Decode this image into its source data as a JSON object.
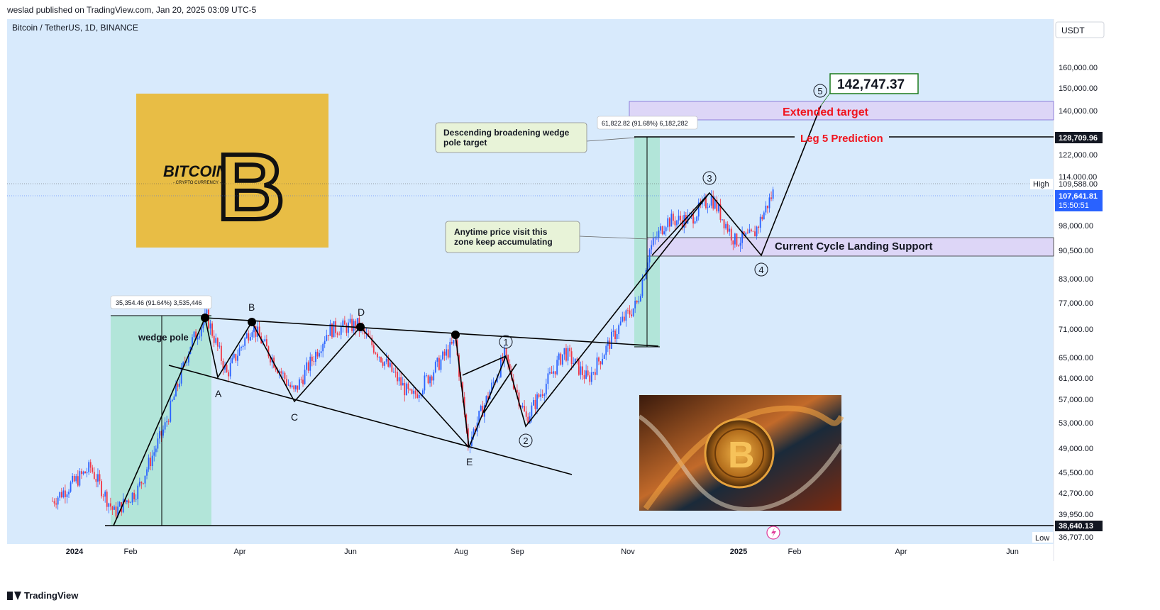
{
  "header": {
    "published": "weslad published on TradingView.com, Jan 20, 2025 03:09 UTC-5"
  },
  "symbol": {
    "title": "Bitcoin / TetherUS, 1D, BINANCE"
  },
  "currency_button": "USDT",
  "footer": {
    "brand": "TradingView"
  },
  "logo_text": {
    "main": "BITCOIN",
    "sub": "- CRYPTO CURRENCY -",
    "symbol": "B"
  },
  "colors": {
    "background": "#d8eafc",
    "candle_up": "#2962ff",
    "candle_down": "#f23645",
    "teal_zone": "#b2e5d9",
    "lavender_zone": "#ddd6f7",
    "annotation_red": "#f0141e",
    "target_green": "#1b7a1b",
    "axis_label_dark": "#131722",
    "axis_label_blue": "#2962ff"
  },
  "price_axis": {
    "ticks": [
      "160,000.00",
      "150,000.00",
      "140,000.00",
      "128,709.96",
      "122,000.00",
      "114,000.00",
      "109,588.00",
      "107,641.81",
      "15:50:51",
      "98,000.00",
      "90,500.00",
      "83,000.00",
      "77,000.00",
      "71,000.00",
      "65,000.00",
      "61,000.00",
      "57,000.00",
      "53,000.00",
      "49,000.00",
      "45,500.00",
      "42,700.00",
      "39,950.00",
      "38,640.13",
      "36,707.00"
    ],
    "high_label": "High",
    "low_label": "Low"
  },
  "time_axis": {
    "ticks": [
      "2024",
      "Feb",
      "Apr",
      "Jun",
      "Aug",
      "Sep",
      "Nov",
      "2025",
      "Feb",
      "Apr",
      "Jun"
    ]
  },
  "annotations": {
    "pole_measure_1": "35,354.46 (91.64%) 3,535,446",
    "pole_measure_2": "61,822.82 (91.68%) 6,182,282",
    "wedge_pole": "wedge pole",
    "callout_wedge": [
      "Descending broadening wedge",
      "pole target"
    ],
    "callout_zone": [
      "Anytime price visit this",
      "zone keep accumulating"
    ],
    "extended_target": "Extended target",
    "leg5_prediction": "Leg 5 Prediction",
    "support_label": "Current Cycle Landing Support",
    "target_value": "142,747.37",
    "points": {
      "A": "A",
      "B": "B",
      "C": "C",
      "D": "D",
      "E": "E"
    },
    "waves": {
      "w1": "1",
      "w2": "2",
      "w3": "3",
      "w4": "4",
      "w5": "5"
    }
  },
  "chart_data": {
    "type": "line",
    "title": "Bitcoin / TetherUS, 1D, BINANCE",
    "xlabel": "",
    "ylabel": "",
    "y_scale": "log",
    "ylim": [
      36707,
      170000
    ],
    "series": [
      {
        "x": [
          "2023-12-20",
          "2024-01-01",
          "2024-01-10",
          "2024-01-23",
          "2024-02-05",
          "2024-02-20",
          "2024-03-05",
          "2024-03-14",
          "2024-03-25",
          "2024-04-08",
          "2024-04-20",
          "2024-05-01",
          "2024-05-20",
          "2024-06-05",
          "2024-06-25",
          "2024-07-05",
          "2024-07-29",
          "2024-08-05",
          "2024-08-25",
          "2024-09-06",
          "2024-09-27",
          "2024-10-10",
          "2024-10-29",
          "2024-11-06",
          "2024-11-13",
          "2024-11-22",
          "2024-12-05",
          "2024-12-17",
          "2024-12-30",
          "2025-01-09",
          "2025-01-20"
        ],
        "values": [
          41000,
          43500,
          45500,
          39500,
          42500,
          51800,
          67000,
          73000,
          61000,
          71000,
          63500,
          57500,
          70000,
          71100,
          61000,
          56500,
          67500,
          49000,
          64500,
          53000,
          65500,
          60000,
          72000,
          76000,
          90000,
          98500,
          99000,
          106000,
          92500,
          94000,
          107641.81
        ]
      }
    ],
    "high": 109588.0,
    "low": 36707.0,
    "last_price": 107641.81,
    "countdown": "15:50:51",
    "levels": {
      "leg5_prediction": 128709.96,
      "support_bottom": 38640.13,
      "extended_target_zone": [
        131500,
        143500
      ],
      "landing_support_zone": [
        88500,
        94000
      ],
      "target": 142747.37
    },
    "measurements": [
      {
        "label": "wedge pole",
        "from": 38640,
        "to": 73994,
        "change": "35,354.46 (91.64%)"
      },
      {
        "label": "pole target",
        "from": 67500,
        "to": 129322,
        "change": "61,822.82 (91.68%)"
      }
    ]
  }
}
